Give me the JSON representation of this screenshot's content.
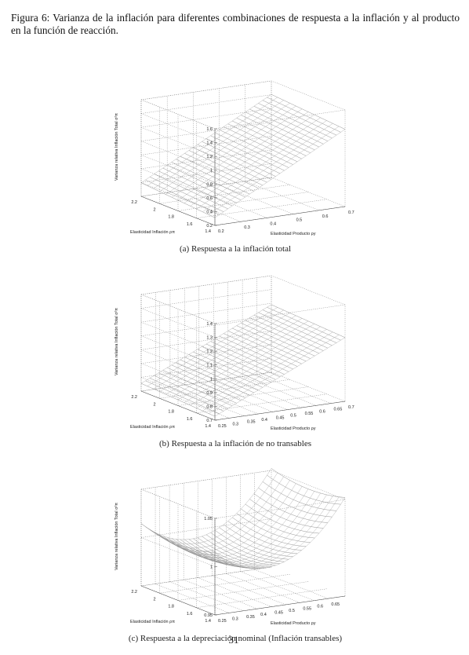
{
  "caption": "Figura 6: Varianza de la inflación para diferentes combinaciones de respuesta a la inflación y al producto en la función de reacción.",
  "figures": [
    {
      "z_label": "Varianza relativa Inflación Total σ²π",
      "x_label": "Elasticidad Inflación ρπ",
      "y_label": "Elasticidad Producto ρy",
      "zticks": [
        "0.2",
        "0.4",
        "0.6",
        "0.8",
        "1",
        "1.2",
        "1.4",
        "1.6"
      ],
      "xticks": [
        "2.2",
        "2",
        "1.8",
        "1.6",
        "1.4"
      ],
      "yticks": [
        "0.2",
        "0.3",
        "0.4",
        "0.5",
        "0.6",
        "0.7"
      ],
      "subcaption": "(a) Respuesta a la inflación total"
    },
    {
      "z_label": "Varianza relativa Inflación Total σ²π",
      "x_label": "Elasticidad Inflación ρπ",
      "y_label": "Elasticidad Producto ρy",
      "zticks": [
        "0.7",
        "0.8",
        "0.9",
        "1",
        "1.1",
        "1.2",
        "1.3",
        "1.4"
      ],
      "xticks": [
        "2.2",
        "2",
        "1.8",
        "1.6",
        "1.4"
      ],
      "yticks": [
        "0.25",
        "0.3",
        "0.35",
        "0.4",
        "0.45",
        "0.5",
        "0.55",
        "0.6",
        "0.65",
        "0.7"
      ],
      "subcaption": "(b) Respuesta a la inflación de no transables"
    },
    {
      "z_label": "Varianza relativa Inflación Total σ²π",
      "x_label": "Elasticidad Inflación ρπ",
      "y_label": "Elasticidad Producto ρy",
      "zticks": [
        "0.95",
        "1",
        "1.05"
      ],
      "xticks": [
        "2.2",
        "2",
        "1.8",
        "1.6",
        "1.4"
      ],
      "yticks": [
        "0.25",
        "0.3",
        "0.35",
        "0.4",
        "0.45",
        "0.5",
        "0.55",
        "0.6",
        "0.65"
      ],
      "subcaption": "(c) Respuesta a la depreciación nominal (Inflación transables)"
    }
  ],
  "page_number": "31"
}
